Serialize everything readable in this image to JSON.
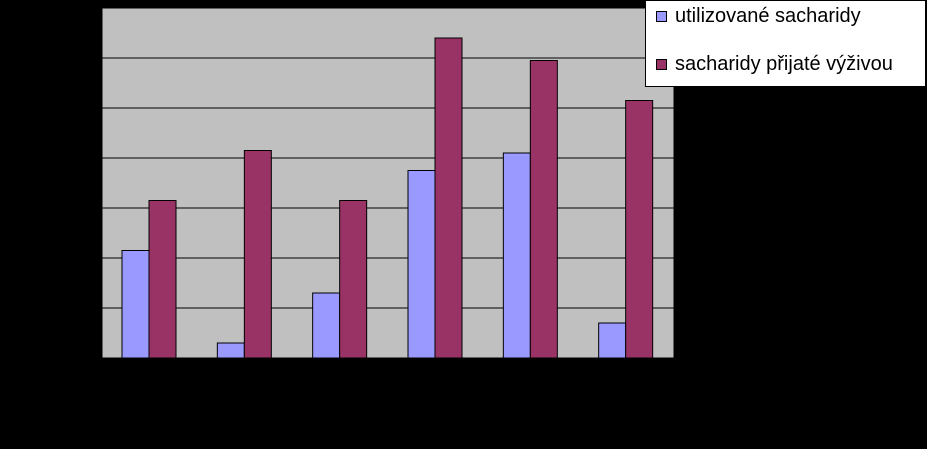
{
  "chart_data": {
    "type": "bar",
    "title": "",
    "xlabel": "",
    "ylabel": "",
    "categories": [
      "",
      "",
      "",
      "",
      "",
      ""
    ],
    "ylim": [
      0,
      7
    ],
    "grid": true,
    "legend_position": "top-right",
    "series": [
      {
        "name": "utilizované sacharidy",
        "color": "#9999ff",
        "values": [
          2.15,
          0.3,
          1.3,
          3.75,
          4.1,
          0.7
        ]
      },
      {
        "name": "sacharidy přijaté výživou",
        "color": "#993366",
        "values": [
          3.15,
          4.15,
          3.15,
          6.4,
          5.95,
          5.15
        ]
      }
    ],
    "plot_background": "#c0c0c0",
    "page_background": "#000000"
  }
}
